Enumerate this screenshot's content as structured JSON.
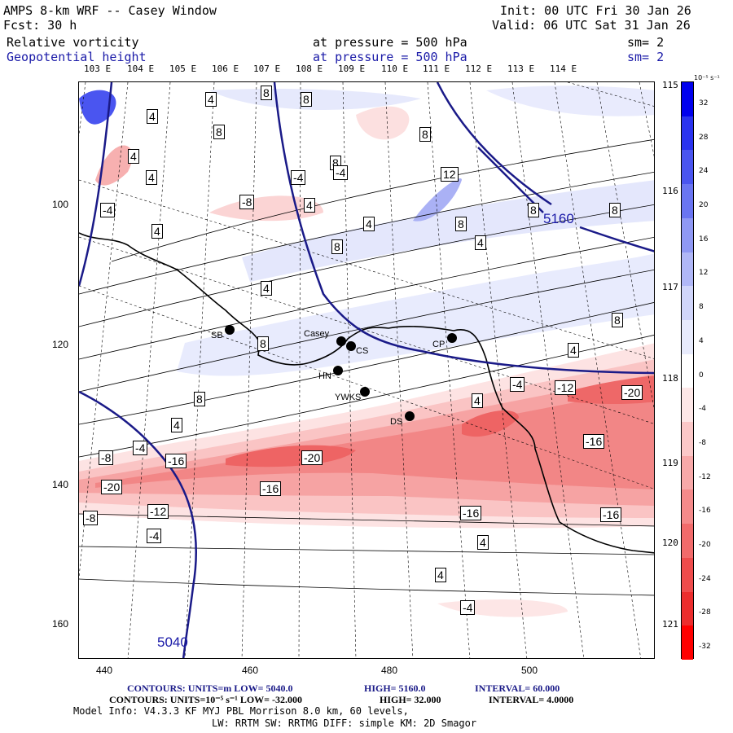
{
  "header": {
    "title": "AMPS 8-km WRF -- Casey Window",
    "init": "Init: 00 UTC Fri 30 Jan 26",
    "fcst": "Fcst:    30 h",
    "valid": "Valid: 06 UTC Sat 31 Jan 26",
    "field1": "Relative vorticity",
    "field1_level": "at pressure =  500 hPa",
    "field1_sm": "sm= 2",
    "field2": "Geopotential height",
    "field2_level": "at pressure =  500 hPa",
    "field2_sm": "sm= 2"
  },
  "top_lon_labels": [
    "103 E",
    "104 E",
    "105 E",
    "106 E",
    "107 E",
    "108 E",
    "109 E",
    "110 E",
    "111 E",
    "112 E",
    "113 E",
    "114 E"
  ],
  "right_lon_labels": [
    "115 E",
    "116 E",
    "117 E",
    "118 E",
    "119 E",
    "120 E",
    "121 E"
  ],
  "y_labels": [
    "100",
    "120",
    "140",
    "160"
  ],
  "x_labels": [
    "440",
    "460",
    "480",
    "500"
  ],
  "colorbar": {
    "units": "10⁻⁵ s⁻¹",
    "labels": [
      "32",
      "28",
      "24",
      "20",
      "16",
      "12",
      "8",
      "4",
      "0",
      "-4",
      "-8",
      "-12",
      "-16",
      "-20",
      "-24",
      "-28",
      "-32"
    ],
    "colors": [
      "#0000ee",
      "#2a33f0",
      "#4a55f0",
      "#6a75f2",
      "#8f98f4",
      "#b0b7f7",
      "#d0d5fa",
      "#e8ebfc",
      "#ffffff",
      "#fde7e7",
      "#fbc8c8",
      "#f8a9a9",
      "#f58a8a",
      "#f26b6b",
      "#ef4c4c",
      "#ec2d2d",
      "#ff0000"
    ]
  },
  "stations": [
    {
      "name": "Casey"
    },
    {
      "name": "CS"
    },
    {
      "name": "SB"
    },
    {
      "name": "HN"
    },
    {
      "name": "YWKS"
    },
    {
      "name": "CP"
    },
    {
      "name": "DS"
    }
  ],
  "height_labels": [
    "5160",
    "5040"
  ],
  "contour_labels": [
    "4",
    "8",
    "8",
    "4",
    "8",
    "4",
    "4",
    "8",
    "4",
    "-4",
    "-4",
    "8",
    "12",
    "-8",
    "4",
    "-4",
    "8",
    "4",
    "4",
    "8",
    "4",
    "8",
    "8",
    "8",
    "8",
    "4",
    "-4",
    "-12",
    "-20",
    "4",
    "8",
    "4",
    "-8",
    "-4",
    "-16",
    "-20",
    "-16",
    "-16",
    "-20",
    "-16",
    "-12",
    "-8",
    "-4",
    "-16",
    "4",
    "4",
    "-4"
  ],
  "footer": {
    "line1_a": "CONTOURS:  UNITS=m  LOW=  5040.0",
    "line1_b": "HIGH=  5160.0",
    "line1_c": "INTERVAL=   60.000",
    "line2_a": "CONTOURS:  UNITS=10⁻⁵ s⁻¹  LOW= -32.000",
    "line2_b": "HIGH=  32.000",
    "line2_c": "INTERVAL=   4.0000",
    "line3": "Model Info: V4.3.3   KF      MYJ PBL  Morrison           8.0 km,  60 levels,",
    "line4": "LW: RRTM SW: RRTMG   DIFF: simple KM: 2D Smagor"
  }
}
